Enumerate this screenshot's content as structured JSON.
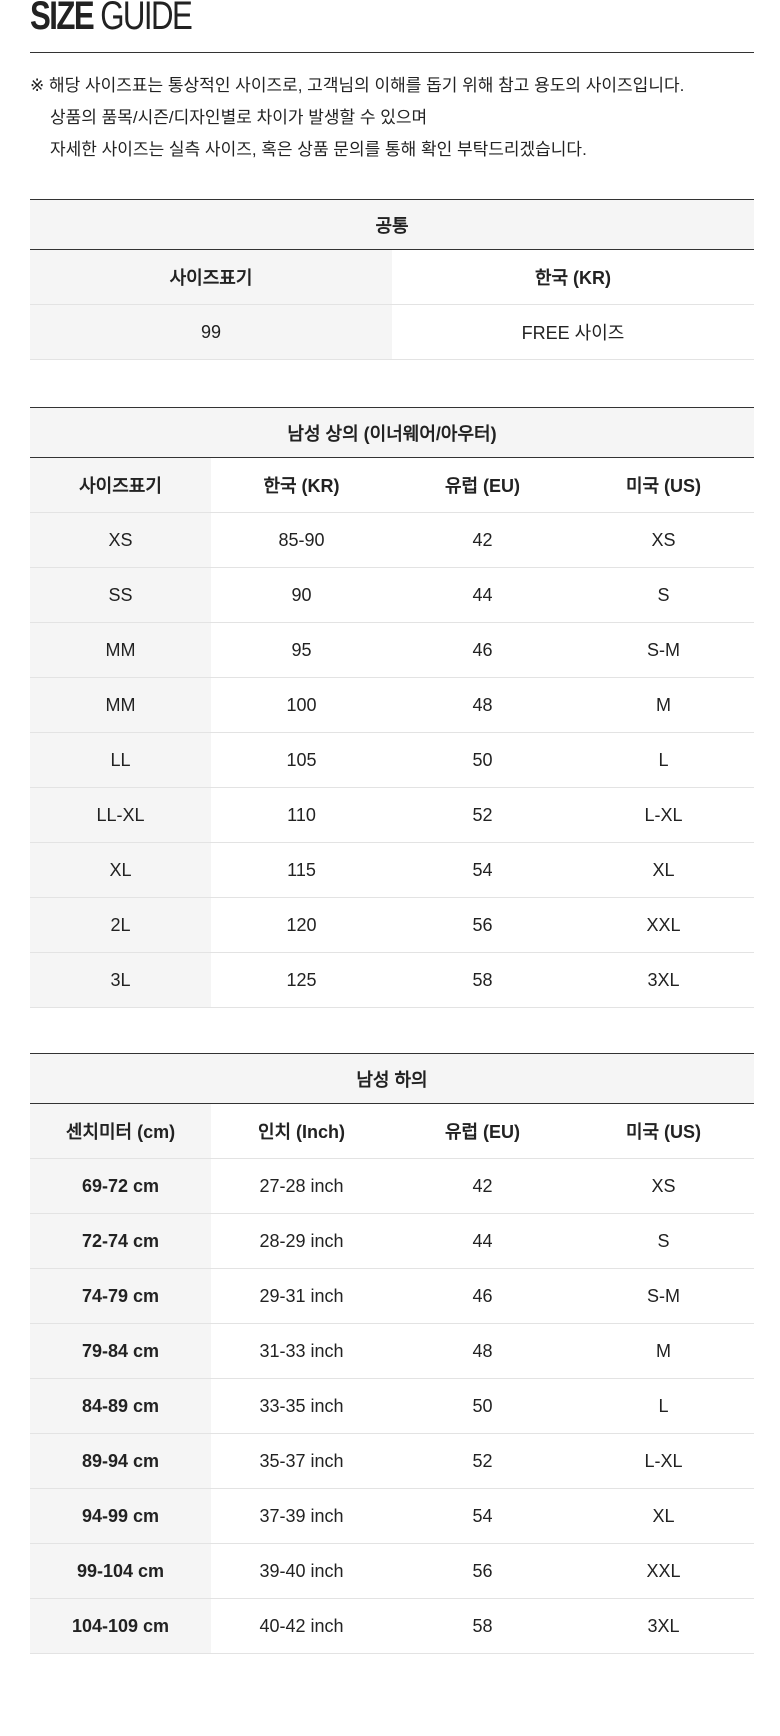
{
  "title": {
    "bold": "SIZE",
    "light": "GUIDE"
  },
  "notes": [
    "※ 해당 사이즈표는 통상적인 사이즈로, 고객님의 이해를 돕기 위해 참고 용도의 사이즈입니다.",
    "상품의 품목/시즌/디자인별로 차이가 발생할 수 있으며",
    "자세한 사이즈는 실측 사이즈, 혹은 상품 문의를 통해 확인 부탁드리겠습니다."
  ],
  "common": {
    "caption": "공통",
    "headers": [
      "사이즈표기",
      "한국 (KR)"
    ],
    "rows": [
      [
        "99",
        "FREE 사이즈"
      ]
    ]
  },
  "tops": {
    "caption": "남성 상의 (이너웨어/아우터)",
    "headers": [
      "사이즈표기",
      "한국 (KR)",
      "유럽 (EU)",
      "미국 (US)"
    ],
    "rows": [
      [
        "XS",
        "85-90",
        "42",
        "XS"
      ],
      [
        "SS",
        "90",
        "44",
        "S"
      ],
      [
        "MM",
        "95",
        "46",
        "S-M"
      ],
      [
        "MM",
        "100",
        "48",
        "M"
      ],
      [
        "LL",
        "105",
        "50",
        "L"
      ],
      [
        "LL-XL",
        "110",
        "52",
        "L-XL"
      ],
      [
        "XL",
        "115",
        "54",
        "XL"
      ],
      [
        "2L",
        "120",
        "56",
        "XXL"
      ],
      [
        "3L",
        "125",
        "58",
        "3XL"
      ]
    ]
  },
  "bottoms": {
    "caption": "남성 하의",
    "headers": [
      "센치미터 (cm)",
      "인치 (Inch)",
      "유럽 (EU)",
      "미국 (US)"
    ],
    "rows": [
      [
        "69-72 cm",
        "27-28 inch",
        "42",
        "XS"
      ],
      [
        "72-74 cm",
        "28-29 inch",
        "44",
        "S"
      ],
      [
        "74-79 cm",
        "29-31 inch",
        "46",
        "S-M"
      ],
      [
        "79-84 cm",
        "31-33 inch",
        "48",
        "M"
      ],
      [
        "84-89 cm",
        "33-35 inch",
        "50",
        "L"
      ],
      [
        "89-94 cm",
        "35-37 inch",
        "52",
        "L-XL"
      ],
      [
        "94-99 cm",
        "37-39 inch",
        "54",
        "XL"
      ],
      [
        "99-104 cm",
        "39-40 inch",
        "56",
        "XXL"
      ],
      [
        "104-109 cm",
        "40-42 inch",
        "58",
        "3XL"
      ]
    ]
  }
}
